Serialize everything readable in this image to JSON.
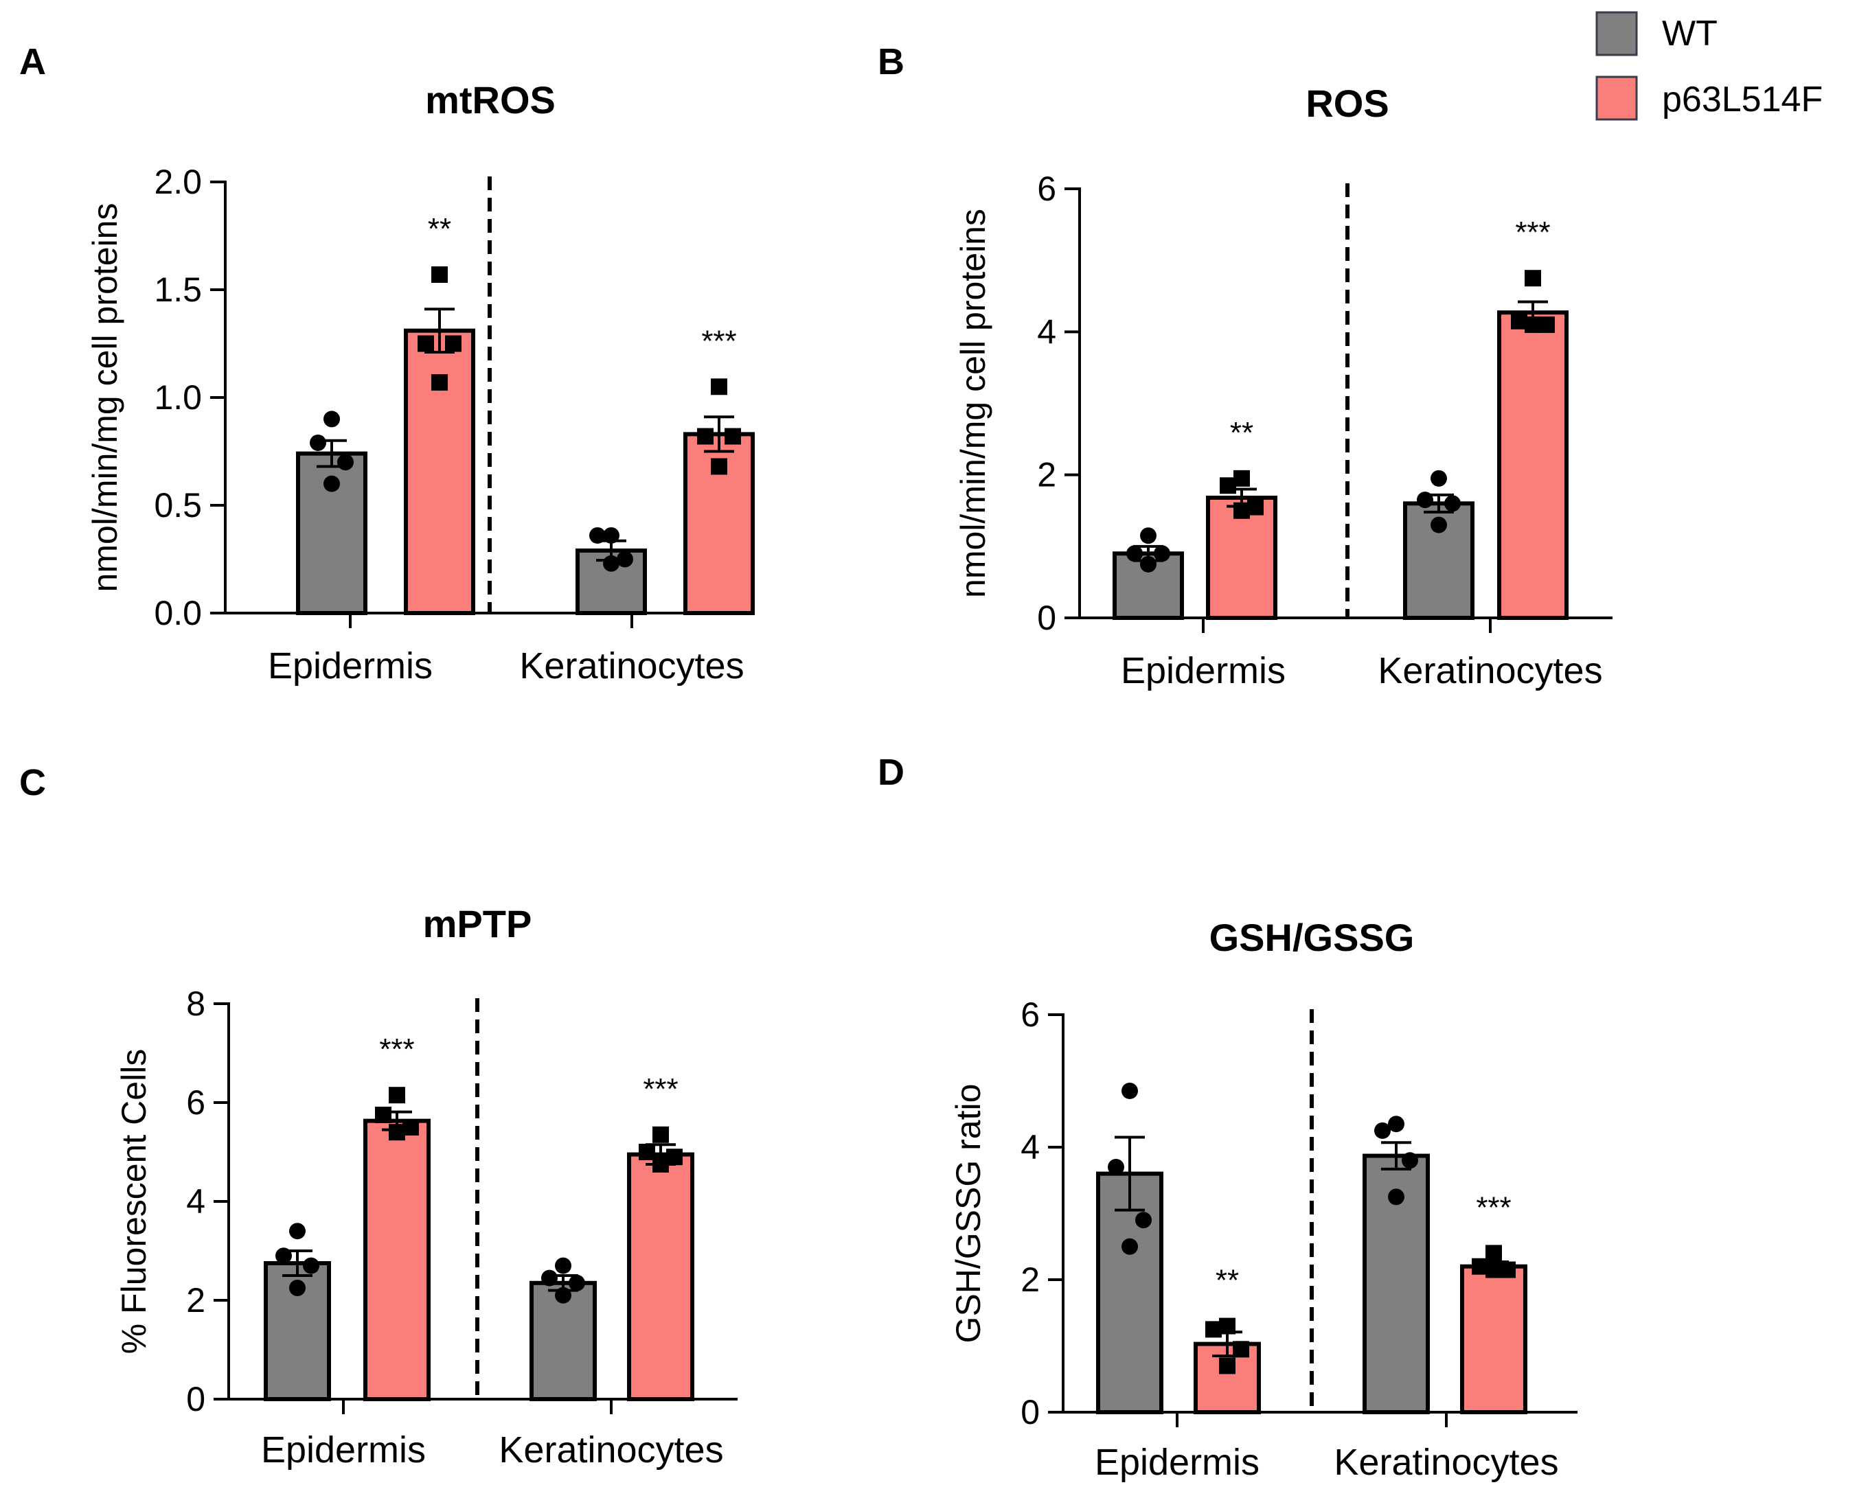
{
  "legend": {
    "placement": "top-right",
    "items": [
      {
        "label": "WT",
        "color": "#808080"
      },
      {
        "label": "p63L514F",
        "color": "#FA7F7A"
      }
    ]
  },
  "colors": {
    "wt": "#808080",
    "mut": "#FA7F7A",
    "ink": "#000000"
  },
  "chart_data": [
    {
      "panel": "A",
      "type": "bar",
      "title": "mtROS",
      "ylabel": "nmol/min/mg cell proteins",
      "xlabel": "",
      "categories": [
        "Epidermis",
        "Keratinocytes"
      ],
      "ylim": [
        0,
        2.0
      ],
      "yticks": [
        0.0,
        0.5,
        1.0,
        1.5,
        2.0
      ],
      "ytick_labels": [
        "0.0",
        "0.5",
        "1.0",
        "1.5",
        "2.0"
      ],
      "series": [
        {
          "name": "WT",
          "values": [
            0.74,
            0.29
          ],
          "sem": [
            0.06,
            0.045
          ],
          "points": [
            [
              0.9,
              0.79,
              0.7,
              0.6
            ],
            [
              0.36,
              0.36,
              0.25,
              0.23
            ]
          ]
        },
        {
          "name": "p63L514F",
          "values": [
            1.31,
            0.83
          ],
          "sem": [
            0.1,
            0.08
          ],
          "points": [
            [
              1.57,
              1.25,
              1.25,
              1.07
            ],
            [
              1.05,
              0.82,
              0.82,
              0.68
            ]
          ]
        }
      ],
      "significance": [
        "**",
        "***"
      ],
      "divider": "dashed"
    },
    {
      "panel": "B",
      "type": "bar",
      "title": "ROS",
      "ylabel": "nmol/min/mg cell proteins",
      "xlabel": "",
      "categories": [
        "Epidermis",
        "Keratinocytes"
      ],
      "ylim": [
        0,
        6
      ],
      "yticks": [
        0,
        2,
        4,
        6
      ],
      "ytick_labels": [
        "0",
        "2",
        "4",
        "6"
      ],
      "series": [
        {
          "name": "WT",
          "values": [
            0.9,
            1.6
          ],
          "sem": [
            0.1,
            0.12
          ],
          "points": [
            [
              1.15,
              0.9,
              0.9,
              0.75
            ],
            [
              1.95,
              1.65,
              1.6,
              1.3
            ]
          ]
        },
        {
          "name": "p63L514F",
          "values": [
            1.68,
            4.27
          ],
          "sem": [
            0.12,
            0.15
          ],
          "points": [
            [
              1.95,
              1.85,
              1.55,
              1.5
            ],
            [
              4.75,
              4.15,
              4.1,
              4.1
            ]
          ]
        }
      ],
      "significance": [
        "**",
        "***"
      ],
      "divider": "dashed"
    },
    {
      "panel": "C",
      "type": "bar",
      "title": "mPTP",
      "ylabel": "% Fluorescent Cells",
      "xlabel": "",
      "categories": [
        "Epidermis",
        "Keratinocytes"
      ],
      "ylim": [
        0,
        8
      ],
      "yticks": [
        0,
        2,
        4,
        6,
        8
      ],
      "ytick_labels": [
        "0",
        "2",
        "4",
        "6",
        "8"
      ],
      "series": [
        {
          "name": "WT",
          "values": [
            2.75,
            2.35
          ],
          "sem": [
            0.25,
            0.15
          ],
          "points": [
            [
              3.4,
              2.9,
              2.7,
              2.25
            ],
            [
              2.7,
              2.45,
              2.35,
              2.1
            ]
          ]
        },
        {
          "name": "p63L514F",
          "values": [
            5.63,
            4.95
          ],
          "sem": [
            0.18,
            0.2
          ],
          "points": [
            [
              6.15,
              5.75,
              5.5,
              5.4
            ],
            [
              5.35,
              5.0,
              4.9,
              4.75
            ]
          ]
        }
      ],
      "significance": [
        "***",
        "***"
      ],
      "divider": "dashed"
    },
    {
      "panel": "D",
      "type": "bar",
      "title": "GSH/GSSG",
      "ylabel": "GSH/GSSG ratio",
      "xlabel": "",
      "categories": [
        "Epidermis",
        "Keratinocytes"
      ],
      "ylim": [
        0,
        6
      ],
      "yticks": [
        0,
        2,
        4,
        6
      ],
      "ytick_labels": [
        "0",
        "2",
        "4",
        "6"
      ],
      "series": [
        {
          "name": "WT",
          "values": [
            3.6,
            3.87
          ],
          "sem": [
            0.55,
            0.2
          ],
          "points": [
            [
              4.85,
              3.7,
              2.9,
              2.5
            ],
            [
              4.35,
              4.25,
              3.8,
              3.25
            ]
          ]
        },
        {
          "name": "p63L514F",
          "values": [
            1.03,
            2.2
          ],
          "sem": [
            0.18,
            0.07
          ],
          "points": [
            [
              1.3,
              1.25,
              0.95,
              0.7
            ],
            [
              2.4,
              2.2,
              2.15,
              2.15
            ]
          ]
        }
      ],
      "significance": [
        "**",
        "***"
      ],
      "divider": "dashed"
    }
  ]
}
